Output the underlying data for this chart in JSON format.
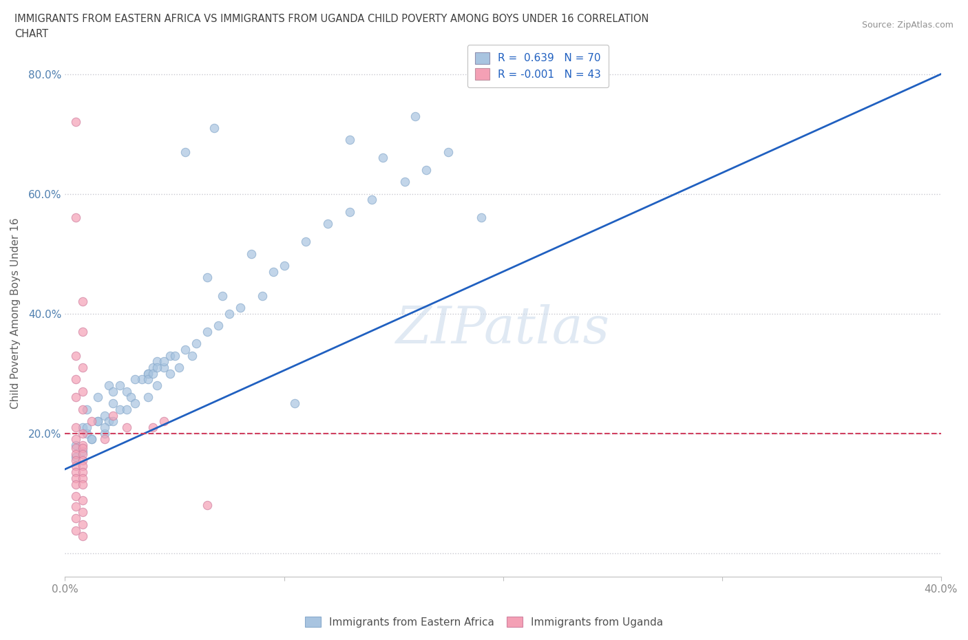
{
  "title_line1": "IMMIGRANTS FROM EASTERN AFRICA VS IMMIGRANTS FROM UGANDA CHILD POVERTY AMONG BOYS UNDER 16 CORRELATION",
  "title_line2": "CHART",
  "source": "Source: ZipAtlas.com",
  "ylabel": "Child Poverty Among Boys Under 16",
  "watermark": "ZIPatlas",
  "legend_entry1": "R =  0.639   N = 70",
  "legend_entry2": "R = -0.001   N = 43",
  "legend_label1": "Immigrants from Eastern Africa",
  "legend_label2": "Immigrants from Uganda",
  "blue_color": "#a8c4e0",
  "pink_color": "#f4a0b5",
  "blue_line_color": "#2060c0",
  "pink_line_color": "#d04060",
  "xlim": [
    0.0,
    0.4
  ],
  "ylim": [
    -0.04,
    0.84
  ],
  "yticks": [
    0.0,
    0.2,
    0.4,
    0.6,
    0.8
  ],
  "ytick_labels": [
    "",
    "20.0%",
    "40.0%",
    "60.0%",
    "80.0%"
  ],
  "xticks": [
    0.0,
    0.1,
    0.2,
    0.3,
    0.4
  ],
  "xtick_labels": [
    "0.0%",
    "",
    "",
    "",
    "40.0%"
  ],
  "grid_color": "#c8c8d0",
  "background_color": "#ffffff",
  "title_color": "#404040",
  "axis_label_color": "#5080b0",
  "blue_points": [
    [
      0.005,
      0.18
    ],
    [
      0.008,
      0.21
    ],
    [
      0.01,
      0.2
    ],
    [
      0.012,
      0.19
    ],
    [
      0.015,
      0.22
    ],
    [
      0.01,
      0.24
    ],
    [
      0.018,
      0.23
    ],
    [
      0.02,
      0.22
    ],
    [
      0.022,
      0.25
    ],
    [
      0.025,
      0.24
    ],
    [
      0.015,
      0.26
    ],
    [
      0.028,
      0.27
    ],
    [
      0.03,
      0.26
    ],
    [
      0.02,
      0.28
    ],
    [
      0.035,
      0.29
    ],
    [
      0.038,
      0.3
    ],
    [
      0.025,
      0.28
    ],
    [
      0.022,
      0.27
    ],
    [
      0.032,
      0.29
    ],
    [
      0.04,
      0.31
    ],
    [
      0.038,
      0.3
    ],
    [
      0.042,
      0.32
    ],
    [
      0.038,
      0.29
    ],
    [
      0.045,
      0.31
    ],
    [
      0.04,
      0.3
    ],
    [
      0.048,
      0.33
    ],
    [
      0.042,
      0.31
    ],
    [
      0.05,
      0.33
    ],
    [
      0.045,
      0.32
    ],
    [
      0.055,
      0.34
    ],
    [
      0.008,
      0.17
    ],
    [
      0.012,
      0.19
    ],
    [
      0.018,
      0.2
    ],
    [
      0.022,
      0.22
    ],
    [
      0.028,
      0.24
    ],
    [
      0.032,
      0.25
    ],
    [
      0.038,
      0.26
    ],
    [
      0.042,
      0.28
    ],
    [
      0.048,
      0.3
    ],
    [
      0.052,
      0.31
    ],
    [
      0.058,
      0.33
    ],
    [
      0.005,
      0.16
    ],
    [
      0.01,
      0.21
    ],
    [
      0.015,
      0.22
    ],
    [
      0.018,
      0.21
    ],
    [
      0.06,
      0.35
    ],
    [
      0.065,
      0.37
    ],
    [
      0.07,
      0.38
    ],
    [
      0.075,
      0.4
    ],
    [
      0.08,
      0.41
    ],
    [
      0.09,
      0.43
    ],
    [
      0.1,
      0.48
    ],
    [
      0.11,
      0.52
    ],
    [
      0.12,
      0.55
    ],
    [
      0.13,
      0.57
    ],
    [
      0.14,
      0.59
    ],
    [
      0.155,
      0.62
    ],
    [
      0.165,
      0.64
    ],
    [
      0.095,
      0.47
    ],
    [
      0.085,
      0.5
    ],
    [
      0.175,
      0.67
    ],
    [
      0.19,
      0.56
    ],
    [
      0.065,
      0.46
    ],
    [
      0.072,
      0.43
    ],
    [
      0.105,
      0.25
    ],
    [
      0.13,
      0.69
    ],
    [
      0.145,
      0.66
    ],
    [
      0.16,
      0.73
    ],
    [
      0.055,
      0.67
    ],
    [
      0.068,
      0.71
    ]
  ],
  "pink_points": [
    [
      0.005,
      0.72
    ],
    [
      0.005,
      0.56
    ],
    [
      0.008,
      0.42
    ],
    [
      0.008,
      0.37
    ],
    [
      0.005,
      0.33
    ],
    [
      0.008,
      0.31
    ],
    [
      0.005,
      0.29
    ],
    [
      0.008,
      0.27
    ],
    [
      0.005,
      0.26
    ],
    [
      0.008,
      0.24
    ],
    [
      0.005,
      0.21
    ],
    [
      0.008,
      0.2
    ],
    [
      0.005,
      0.19
    ],
    [
      0.008,
      0.18
    ],
    [
      0.005,
      0.175
    ],
    [
      0.008,
      0.175
    ],
    [
      0.005,
      0.165
    ],
    [
      0.008,
      0.165
    ],
    [
      0.005,
      0.155
    ],
    [
      0.008,
      0.155
    ],
    [
      0.005,
      0.145
    ],
    [
      0.008,
      0.145
    ],
    [
      0.005,
      0.135
    ],
    [
      0.008,
      0.135
    ],
    [
      0.005,
      0.125
    ],
    [
      0.008,
      0.125
    ],
    [
      0.005,
      0.115
    ],
    [
      0.008,
      0.115
    ],
    [
      0.005,
      0.095
    ],
    [
      0.008,
      0.088
    ],
    [
      0.005,
      0.078
    ],
    [
      0.008,
      0.068
    ],
    [
      0.005,
      0.058
    ],
    [
      0.008,
      0.048
    ],
    [
      0.005,
      0.038
    ],
    [
      0.008,
      0.028
    ],
    [
      0.04,
      0.21
    ],
    [
      0.045,
      0.22
    ],
    [
      0.012,
      0.22
    ],
    [
      0.018,
      0.19
    ],
    [
      0.065,
      0.08
    ],
    [
      0.022,
      0.23
    ],
    [
      0.028,
      0.21
    ]
  ],
  "blue_line_x": [
    0.0,
    0.4
  ],
  "blue_line_y": [
    0.14,
    0.8
  ],
  "pink_line_x": [
    0.0,
    0.4
  ],
  "pink_line_y": [
    0.2,
    0.2
  ]
}
